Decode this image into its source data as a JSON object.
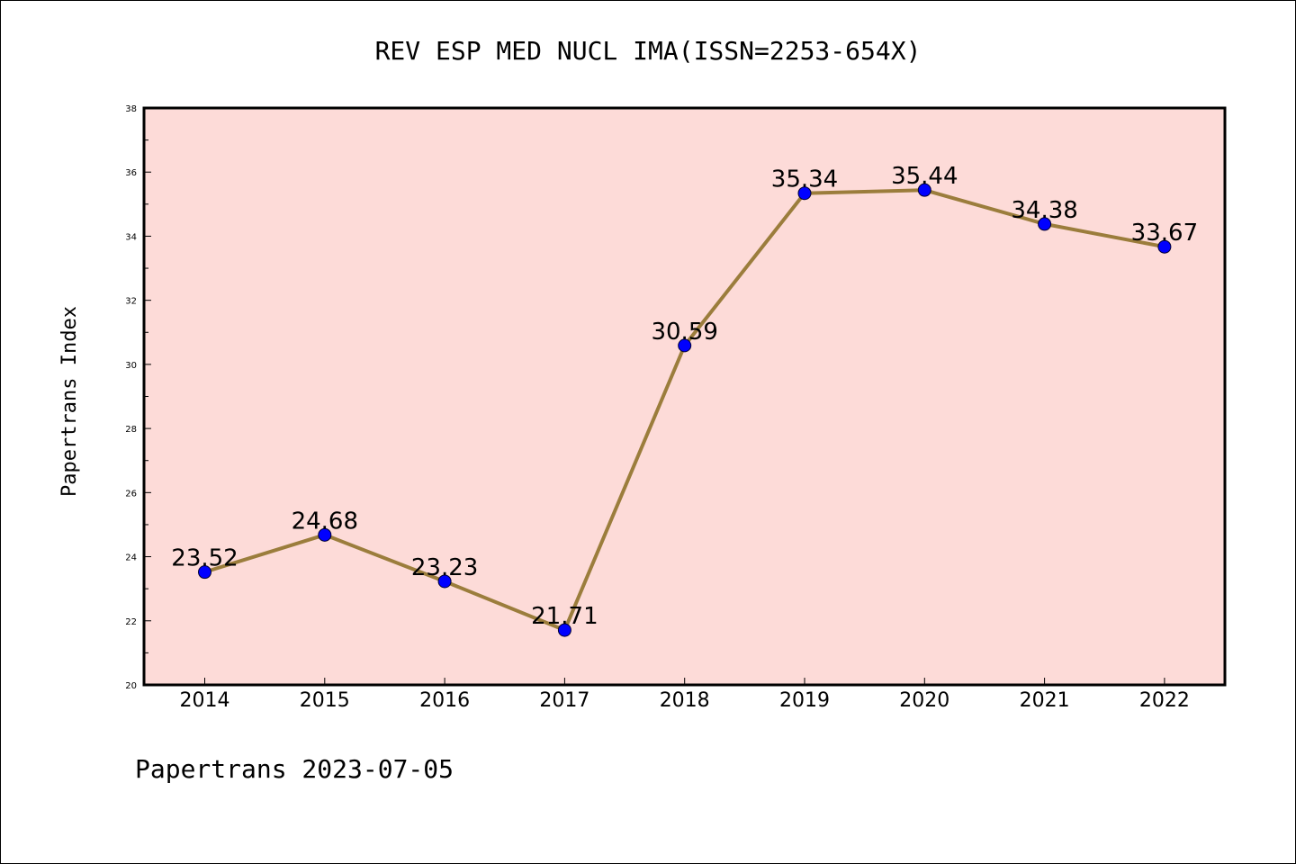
{
  "chart_data": {
    "type": "line",
    "title": "REV ESP MED NUCL IMA(ISSN=2253-654X)",
    "ylabel": "Papertrans Index",
    "xlabel": "",
    "x": [
      "2014",
      "2015",
      "2016",
      "2017",
      "2018",
      "2019",
      "2020",
      "2021",
      "2022"
    ],
    "values": [
      23.52,
      24.68,
      23.23,
      21.71,
      30.59,
      35.34,
      35.44,
      34.38,
      33.67
    ],
    "value_labels": [
      "23.52",
      "24.68",
      "23.23",
      "21.71",
      "30.59",
      "35.34",
      "35.44",
      "34.38",
      "33.67"
    ],
    "ylim": [
      20,
      38
    ],
    "yticks": [
      "20",
      "22",
      "24",
      "26",
      "28",
      "30",
      "32",
      "34",
      "36",
      "38"
    ],
    "grid": false,
    "plot_background": "#fddbd8",
    "line_color": "#9b7d3c",
    "marker_color": "#0000ff"
  },
  "footer": "Papertrans 2023-07-05"
}
